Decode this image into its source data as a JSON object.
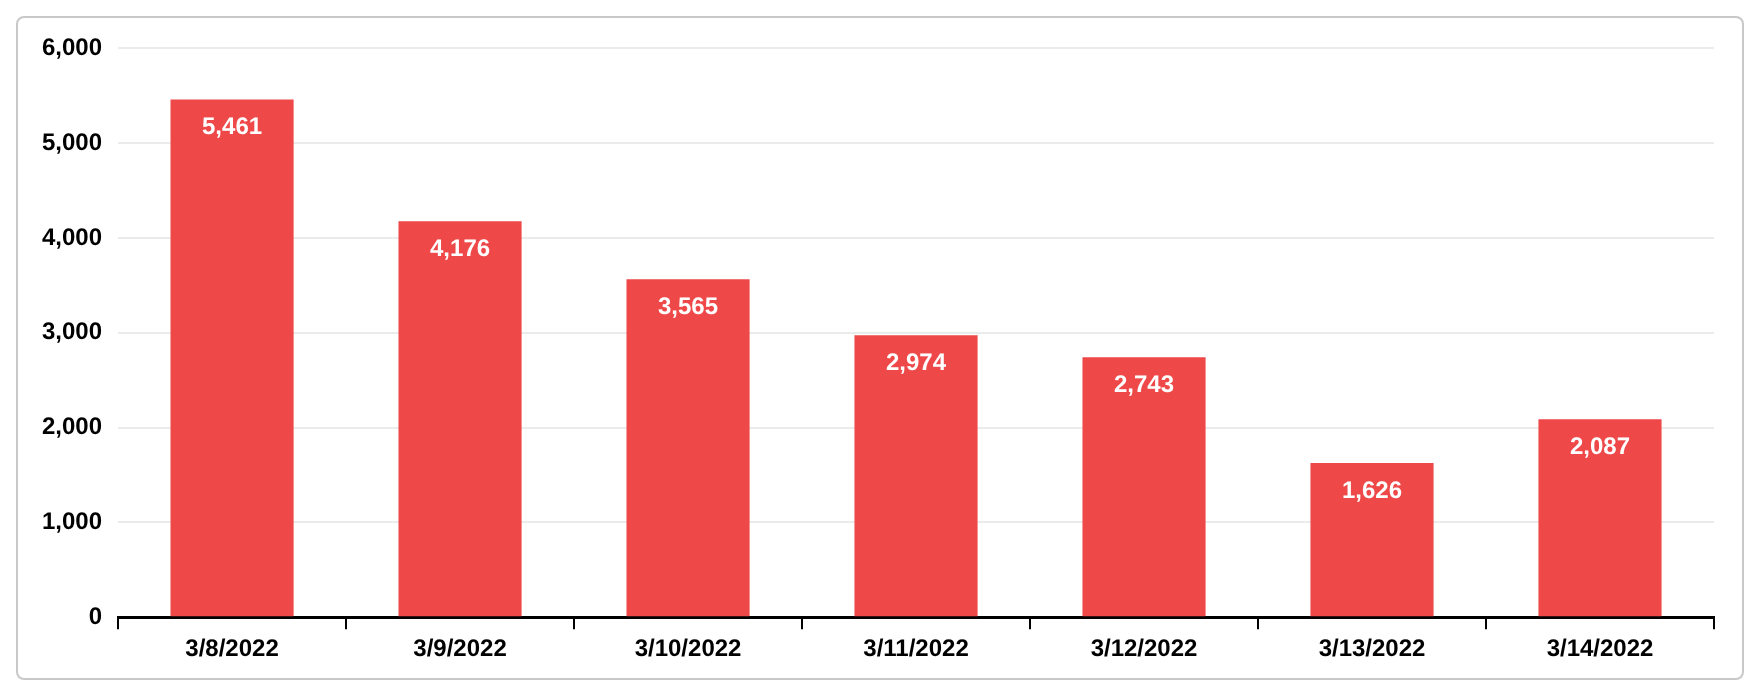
{
  "chart_data": {
    "type": "bar",
    "categories": [
      "3/8/2022",
      "3/9/2022",
      "3/10/2022",
      "3/11/2022",
      "3/12/2022",
      "3/13/2022",
      "3/14/2022"
    ],
    "values": [
      5461,
      4176,
      3565,
      2974,
      2743,
      1626,
      2087
    ],
    "color": "#ef4848",
    "ylim": [
      0,
      6000
    ],
    "yticks": [
      {
        "value": 0,
        "label": "0"
      },
      {
        "value": 1000,
        "label": "1,000"
      },
      {
        "value": 2000,
        "label": "2,000"
      },
      {
        "value": 3000,
        "label": "3,000"
      },
      {
        "value": 4000,
        "label": "4,000"
      },
      {
        "value": 5000,
        "label": "5,000"
      },
      {
        "value": 6000,
        "label": "6,000"
      }
    ],
    "value_labels": [
      "5,461",
      "4,176",
      "3,565",
      "2,974",
      "2,743",
      "1,626",
      "2,087"
    ],
    "grid": "y",
    "legend": false
  }
}
